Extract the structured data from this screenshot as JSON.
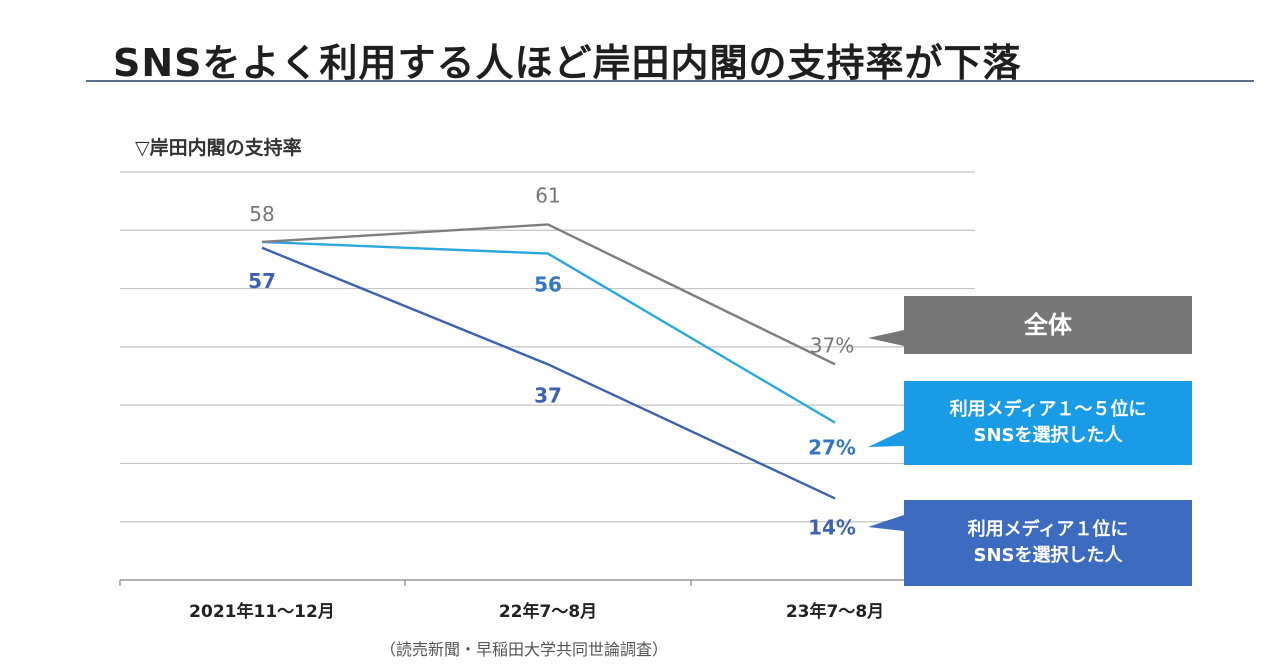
{
  "page_title": "SNSをよく利用する人ほど岸田内閣の支持率が下落",
  "chart_data": {
    "type": "line",
    "title": "",
    "ylabel": "▽岸田内閣の支持率",
    "xlabel": "",
    "categories": [
      "2021年11〜12月",
      "22年7〜8月",
      "23年7〜8月"
    ],
    "ylim": [
      0,
      70
    ],
    "grid": true,
    "series": [
      {
        "name": "全体",
        "values": [
          58,
          61,
          37
        ],
        "labels": [
          "58",
          "61",
          "37%"
        ],
        "color": "#7f7f7f",
        "label_color": "#777777"
      },
      {
        "name": "利用メディア１〜５位にSNSを選択した人",
        "name_lines": [
          "利用メディア１〜５位に",
          "SNSを選択した人"
        ],
        "values": [
          58,
          56,
          27
        ],
        "labels": [
          "",
          "56",
          "27%"
        ],
        "color": "#29a8e0",
        "label_color": "#3576c4"
      },
      {
        "name": "利用メディア１位にSNSを選択した人",
        "name_lines": [
          "利用メディア１位に",
          "SNSを選択した人"
        ],
        "values": [
          57,
          37,
          14
        ],
        "labels": [
          "57",
          "37",
          "14%"
        ],
        "color": "#3d62b4",
        "label_color": "#3d62b4"
      }
    ],
    "legend_placement": "right",
    "source_note": "（読売新聞・早稲田大学共同世論調査）"
  }
}
